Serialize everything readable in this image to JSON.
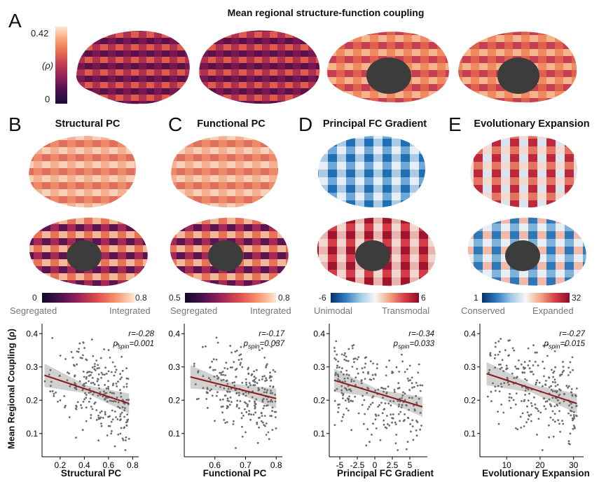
{
  "panelA": {
    "letter": "A",
    "title": "Mean regional structure-function coupling",
    "cbar_max": "0.42",
    "cbar_min": "0",
    "cbar_label": "(ρ)"
  },
  "panels": [
    {
      "letter": "B",
      "title": "Structural PC",
      "cb_min": "0",
      "cb_max": "0.8",
      "cb_left": "Segregated",
      "cb_right": "Integrated",
      "stat_r": "r=-0.28",
      "stat_p": "=0.001",
      "xlabel": "Structural PC",
      "xticks": [
        "0.2",
        "0.4",
        "0.6",
        "0.8"
      ]
    },
    {
      "letter": "C",
      "title": "Functional PC",
      "cb_min": "0.5",
      "cb_max": "0.8",
      "cb_left": "Segregated",
      "cb_right": "Integrated",
      "stat_r": "r=-0.17",
      "stat_p": "=0.037",
      "xlabel": "Functional PC",
      "xticks": [
        "0.6",
        "0.7",
        "0.8"
      ]
    },
    {
      "letter": "D",
      "title": "Principal FC Gradient",
      "cb_min": "-6",
      "cb_max": "6",
      "cb_left": "Unimodal",
      "cb_right": "Transmodal",
      "stat_r": "r=-0.34",
      "stat_p": "=0.033",
      "xlabel": "Principal FC Gradient",
      "xticks": [
        "-5",
        "-2.5",
        "0",
        "2.5",
        "5"
      ]
    },
    {
      "letter": "E",
      "title": "Evolutionary Expansion",
      "cb_min": "1",
      "cb_max": "32",
      "cb_left": "Conserved",
      "cb_right": "Expanded",
      "stat_r": "r=-0.27",
      "stat_p": "=0.015",
      "xlabel": "Evolutionary Expansion",
      "xticks": [
        "10",
        "20",
        "30"
      ]
    }
  ],
  "p_spin_symbol": "p",
  "p_spin_sub": "spin",
  "ylabel": "Mean Regional Coupling (ρ)",
  "yticks": [
    "0.1",
    "0.2",
    "0.3",
    "0.4"
  ],
  "chart_data": [
    {
      "type": "scatter",
      "xlabel": "Structural PC",
      "ylabel": "Mean Regional Coupling (ρ)",
      "xlim": [
        0.05,
        0.85
      ],
      "ylim": [
        0.03,
        0.43
      ],
      "x_ticks": [
        0.2,
        0.4,
        0.6,
        0.8
      ],
      "y_ticks": [
        0.1,
        0.2,
        0.3,
        0.4
      ],
      "fit": {
        "x": [
          0.07,
          0.77
        ],
        "y": [
          0.275,
          0.19
        ]
      },
      "x_range": [
        0.07,
        0.77
      ],
      "y_range": [
        0.05,
        0.42
      ],
      "r": -0.28,
      "p_spin": 0.001
    },
    {
      "type": "scatter",
      "xlabel": "Functional PC",
      "ylabel": "Mean Regional Coupling (ρ)",
      "xlim": [
        0.5,
        0.82
      ],
      "ylim": [
        0.03,
        0.43
      ],
      "x_ticks": [
        0.6,
        0.7,
        0.8
      ],
      "y_ticks": [
        0.1,
        0.2,
        0.3,
        0.4
      ],
      "fit": {
        "x": [
          0.52,
          0.8
        ],
        "y": [
          0.27,
          0.205
        ]
      },
      "x_range": [
        0.52,
        0.8
      ],
      "y_range": [
        0.05,
        0.42
      ],
      "r": -0.17,
      "p_spin": 0.037
    },
    {
      "type": "scatter",
      "xlabel": "Principal FC Gradient",
      "ylabel": "Mean Regional Coupling (ρ)",
      "xlim": [
        -6.5,
        7.5
      ],
      "ylim": [
        0.03,
        0.43
      ],
      "x_ticks": [
        -5,
        -2.5,
        0,
        2.5,
        5
      ],
      "y_ticks": [
        0.1,
        0.2,
        0.3,
        0.4
      ],
      "fit": {
        "x": [
          -5.8,
          6.8
        ],
        "y": [
          0.26,
          0.18
        ]
      },
      "x_range": [
        -5.8,
        6.8
      ],
      "y_range": [
        0.05,
        0.42
      ],
      "r": -0.34,
      "p_spin": 0.033
    },
    {
      "type": "scatter",
      "xlabel": "Evolutionary Expansion",
      "ylabel": "Mean Regional Coupling (ρ)",
      "xlim": [
        2,
        33
      ],
      "ylim": [
        0.03,
        0.43
      ],
      "x_ticks": [
        10,
        20,
        30
      ],
      "y_ticks": [
        0.1,
        0.2,
        0.3,
        0.4
      ],
      "fit": {
        "x": [
          4,
          31
        ],
        "y": [
          0.28,
          0.19
        ]
      },
      "x_range": [
        4,
        31
      ],
      "y_range": [
        0.05,
        0.42
      ],
      "r": -0.27,
      "p_spin": 0.015
    }
  ]
}
